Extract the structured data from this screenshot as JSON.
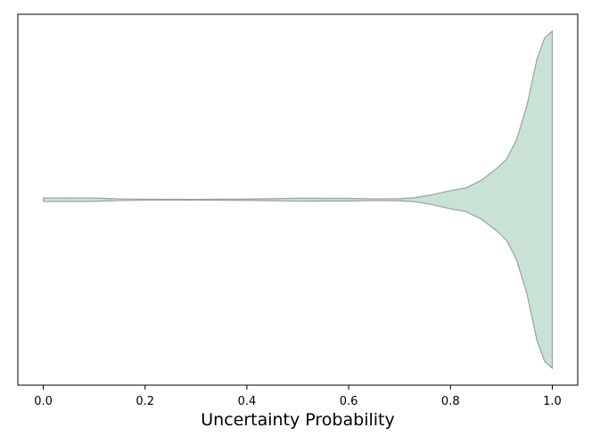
{
  "chart_data": {
    "type": "violin",
    "orientation": "horizontal",
    "title": "",
    "xlabel": "Uncertainty Probability",
    "ylabel": "",
    "xlim": [
      -0.05,
      1.05
    ],
    "x_ticks": [
      0.0,
      0.2,
      0.4,
      0.6,
      0.8,
      1.0
    ],
    "x_tick_labels": [
      "0.0",
      "0.2",
      "0.4",
      "0.6",
      "0.8",
      "1.0"
    ],
    "y_ticks_visible": false,
    "grid": false,
    "legend": "none",
    "series": [
      {
        "data_range": [
          0.0,
          1.0
        ],
        "density": [
          [
            0.0,
            0.01
          ],
          [
            0.05,
            0.011
          ],
          [
            0.1,
            0.01
          ],
          [
            0.15,
            0.005
          ],
          [
            0.2,
            0.003
          ],
          [
            0.3,
            0.002
          ],
          [
            0.4,
            0.004
          ],
          [
            0.45,
            0.006
          ],
          [
            0.5,
            0.009
          ],
          [
            0.55,
            0.008
          ],
          [
            0.6,
            0.008
          ],
          [
            0.65,
            0.005
          ],
          [
            0.7,
            0.006
          ],
          [
            0.73,
            0.012
          ],
          [
            0.76,
            0.027
          ],
          [
            0.8,
            0.054
          ],
          [
            0.83,
            0.07
          ],
          [
            0.86,
            0.114
          ],
          [
            0.89,
            0.183
          ],
          [
            0.91,
            0.24
          ],
          [
            0.93,
            0.358
          ],
          [
            0.95,
            0.557
          ],
          [
            0.97,
            0.836
          ],
          [
            0.985,
            0.96
          ],
          [
            1.0,
            1.0
          ]
        ]
      }
    ],
    "colors": {
      "fill": "#c9e2d5",
      "stroke": "#9aa39d"
    }
  }
}
